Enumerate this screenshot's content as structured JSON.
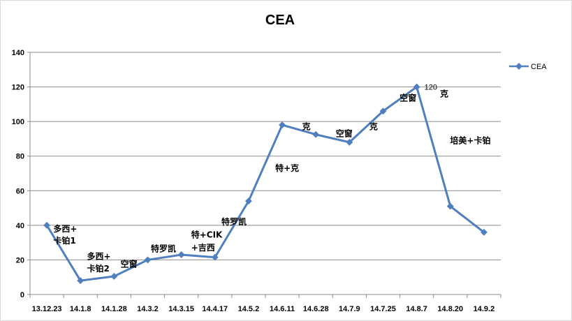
{
  "chart_data": {
    "type": "line",
    "title": "CEA",
    "xlabel": "",
    "ylabel": "",
    "categories": [
      "13.12.23",
      "14.1.8",
      "14.1.28",
      "14.3.2",
      "14.3.15",
      "14.4.17",
      "14.5.2",
      "14.6.11",
      "14.6.28",
      "14.7.9",
      "14.7.25",
      "14.8.7",
      "14.8.20",
      "14.9.2"
    ],
    "series": [
      {
        "name": "CEA",
        "color": "#4f7fbf",
        "values": [
          40,
          8,
          10.5,
          20,
          23,
          21.5,
          54,
          98,
          92.5,
          88,
          106,
          120,
          51,
          36
        ]
      }
    ],
    "ylim": [
      0,
      140
    ],
    "yticks": [
      0,
      20,
      40,
      60,
      80,
      100,
      120,
      140
    ],
    "grid": true,
    "legend": "right",
    "data_labels": [
      {
        "index": 11,
        "text": "120"
      }
    ],
    "annotations": [
      {
        "text": "多西+",
        "x": 0.4,
        "y": 38
      },
      {
        "text": "卡铂1",
        "x": 0.4,
        "y": 31
      },
      {
        "text": "多西+",
        "x": 1.4,
        "y": 22
      },
      {
        "text": "卡铂2",
        "x": 1.4,
        "y": 15
      },
      {
        "text": "空窗",
        "x": 2.4,
        "y": 17.5
      },
      {
        "text": "特罗凯",
        "x": 3.3,
        "y": 26.5
      },
      {
        "text": "特+CIK",
        "x": 4.5,
        "y": 34.5
      },
      {
        "text": "+吉西",
        "x": 4.5,
        "y": 27
      },
      {
        "text": "特罗凯",
        "x": 5.4,
        "y": 42
      },
      {
        "text": "特+克",
        "x": 7.0,
        "y": 73
      },
      {
        "text": "克",
        "x": 7.8,
        "y": 97
      },
      {
        "text": "空窗",
        "x": 8.8,
        "y": 93
      },
      {
        "text": "克",
        "x": 9.8,
        "y": 97
      },
      {
        "text": "空窗",
        "x": 10.7,
        "y": 113.5
      },
      {
        "text": "克",
        "x": 11.9,
        "y": 116
      },
      {
        "text": "培美+卡铂",
        "x": 12.2,
        "y": 89
      }
    ]
  }
}
